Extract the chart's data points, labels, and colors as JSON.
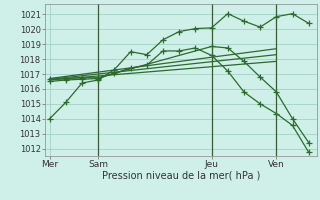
{
  "background_color": "#cff0e8",
  "grid_color": "#99ccbb",
  "line_color": "#2d6a2d",
  "title": "Pression niveau de la mer( hPa )",
  "ylabel_values": [
    1012,
    1013,
    1014,
    1015,
    1016,
    1017,
    1018,
    1019,
    1020,
    1021
  ],
  "ylim": [
    1011.5,
    1021.7
  ],
  "x_ticks_labels": [
    "Mer",
    "Sam",
    "Jeu",
    "Ven"
  ],
  "x_ticks_pos": [
    0,
    3,
    10,
    14
  ],
  "series1_x": [
    0,
    1,
    2,
    3,
    4,
    5,
    6,
    7,
    8,
    9,
    10,
    11,
    12,
    13,
    14,
    15,
    16
  ],
  "series1_y": [
    1014.0,
    1015.1,
    1016.4,
    1016.6,
    1017.3,
    1018.5,
    1018.3,
    1019.3,
    1019.85,
    1020.05,
    1020.1,
    1021.05,
    1020.55,
    1020.15,
    1020.85,
    1021.05,
    1020.4
  ],
  "series2_x": [
    0,
    1,
    2,
    3,
    4,
    5,
    6,
    7,
    8,
    9,
    10,
    11,
    12,
    13,
    14,
    15,
    16
  ],
  "series2_y": [
    1016.5,
    1016.6,
    1016.65,
    1016.7,
    1017.05,
    1017.4,
    1017.6,
    1018.55,
    1018.55,
    1018.75,
    1018.25,
    1017.2,
    1015.8,
    1015.0,
    1014.35,
    1013.55,
    1011.75
  ],
  "series3_x": [
    0,
    1,
    2,
    3,
    10,
    11,
    12,
    13,
    14,
    15,
    16
  ],
  "series3_y": [
    1016.65,
    1016.7,
    1016.75,
    1016.75,
    1018.85,
    1018.75,
    1017.85,
    1016.8,
    1015.8,
    1014.0,
    1012.4
  ],
  "line1_x": [
    0,
    14
  ],
  "line1_y": [
    1016.7,
    1018.7
  ],
  "line2_x": [
    0,
    14
  ],
  "line2_y": [
    1016.65,
    1018.3
  ],
  "line3_x": [
    0,
    14
  ],
  "line3_y": [
    1016.6,
    1017.85
  ],
  "vlines_x": [
    3,
    10,
    14
  ],
  "xlim": [
    -0.3,
    16.5
  ]
}
